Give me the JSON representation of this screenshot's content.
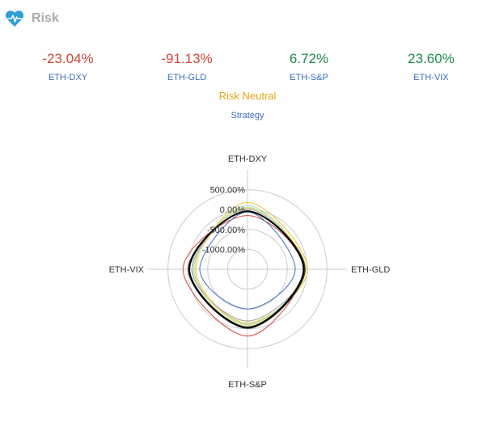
{
  "header": {
    "title": "Risk",
    "icon": "heart-pulse-icon",
    "icon_color": "#2a9fd8"
  },
  "metrics": [
    {
      "value": "-23.04%",
      "label": "ETH-DXY",
      "status": "negative"
    },
    {
      "value": "-91.13%",
      "label": "ETH-GLD",
      "status": "negative"
    },
    {
      "value": "6.72%",
      "label": "ETH-S&P",
      "status": "positive"
    },
    {
      "value": "23.60%",
      "label": "ETH-VIX",
      "status": "positive"
    }
  ],
  "mode_label": "Risk Neutral",
  "strategy_label": "Strategy",
  "colors": {
    "negative": "#d04637",
    "positive": "#1f8a4c",
    "label": "#3d6fc2",
    "mode": "#e9a316",
    "grid": "#cccccc"
  },
  "chart_data": {
    "type": "radar",
    "axes": [
      "ETH-DXY",
      "ETH-GLD",
      "ETH-S&P",
      "ETH-VIX"
    ],
    "range": [
      -1500,
      1000
    ],
    "ticks": [
      500,
      0,
      -500,
      -1000
    ],
    "tick_labels": [
      "500.00%",
      "0.00%",
      "-500.00%",
      "-1000.00%"
    ],
    "grid": true,
    "series": [
      {
        "color": "#f2c230",
        "values": [
          180,
          10,
          -150,
          -200
        ]
      },
      {
        "color": "#d04637",
        "values": [
          -150,
          -100,
          180,
          120
        ]
      },
      {
        "color": "#3d6fc2",
        "values": [
          -60,
          -300,
          -500,
          -300
        ]
      },
      {
        "color": "#9fd8d2",
        "values": [
          100,
          -50,
          -120,
          -150
        ]
      },
      {
        "color": "#c4e39c",
        "values": [
          60,
          -80,
          -100,
          -120
        ]
      },
      {
        "color": "#9e9e9e",
        "values": [
          20,
          -60,
          -200,
          -100
        ]
      },
      {
        "color": "#f0e68c",
        "values": [
          40,
          -30,
          -80,
          -180
        ]
      },
      {
        "color": "#333333",
        "values": [
          -50,
          -60,
          -20,
          -20
        ]
      },
      {
        "color": "#000000",
        "values": [
          -40,
          -90,
          -40,
          -40
        ]
      }
    ]
  }
}
